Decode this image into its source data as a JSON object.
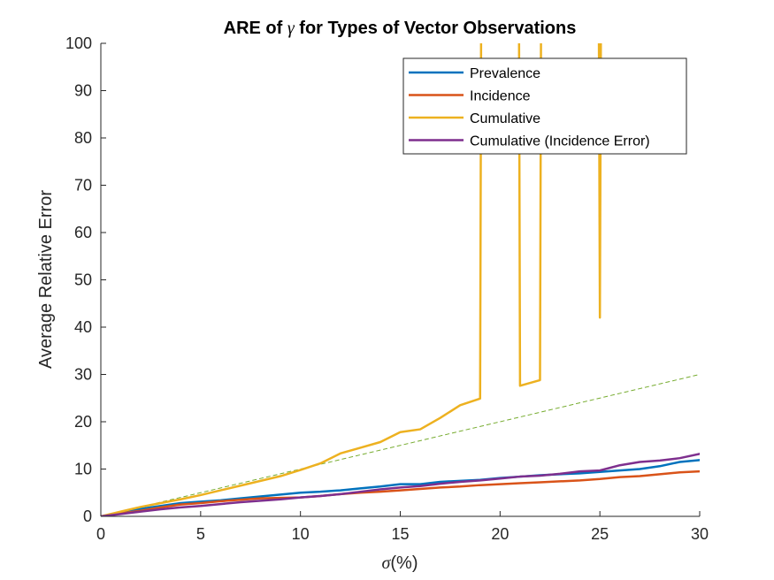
{
  "chart_data": {
    "type": "line",
    "title_prefix": "ARE of ",
    "title_symbol": "γ",
    "title_suffix": " for Types of Vector Observations",
    "xlabel_symbol": "σ",
    "xlabel_suffix": "(%)",
    "ylabel": "Average Relative Error",
    "xlim": [
      0,
      30
    ],
    "ylim": [
      0,
      100
    ],
    "xticks": [
      0,
      5,
      10,
      15,
      20,
      25,
      30
    ],
    "yticks": [
      0,
      10,
      20,
      30,
      40,
      50,
      60,
      70,
      80,
      90,
      100
    ],
    "grid": false,
    "legend_position": "top-right",
    "reference_line": {
      "x": [
        0,
        30
      ],
      "y": [
        0,
        30
      ],
      "color": "#77AC30",
      "style": "dashed"
    },
    "series": [
      {
        "name": "Prevalence",
        "color": "#0072BD",
        "x": [
          0,
          1,
          2,
          3,
          4,
          5,
          6,
          7,
          8,
          9,
          10,
          11,
          12,
          13,
          14,
          15,
          16,
          17,
          18,
          19,
          20,
          21,
          22,
          23,
          24,
          25,
          26,
          27,
          28,
          29,
          30
        ],
        "y": [
          0,
          0.8,
          1.6,
          2.2,
          2.8,
          3.1,
          3.4,
          3.8,
          4.2,
          4.6,
          5.0,
          5.2,
          5.5,
          5.9,
          6.3,
          6.8,
          6.8,
          7.3,
          7.5,
          7.7,
          8.1,
          8.4,
          8.7,
          8.9,
          9.1,
          9.4,
          9.7,
          10.0,
          10.6,
          11.5,
          11.9
        ]
      },
      {
        "name": "Incidence",
        "color": "#D95319",
        "x": [
          0,
          1,
          2,
          3,
          4,
          5,
          6,
          7,
          8,
          9,
          10,
          11,
          12,
          13,
          14,
          15,
          16,
          17,
          18,
          19,
          20,
          21,
          22,
          23,
          24,
          25,
          26,
          27,
          28,
          29,
          30
        ],
        "y": [
          0,
          0.6,
          1.2,
          1.9,
          2.5,
          2.8,
          3.2,
          3.5,
          3.8,
          3.9,
          4.0,
          4.3,
          4.7,
          5.0,
          5.2,
          5.5,
          5.8,
          6.1,
          6.3,
          6.6,
          6.8,
          7.0,
          7.2,
          7.4,
          7.6,
          7.9,
          8.3,
          8.5,
          8.9,
          9.3,
          9.5
        ]
      },
      {
        "name": "Cumulative",
        "color": "#EDB120",
        "x": [
          0,
          1,
          2,
          3,
          4,
          5,
          6,
          7,
          8,
          9,
          10,
          11,
          12,
          13,
          14,
          15,
          16,
          17,
          18,
          19,
          19.05,
          20.95,
          21,
          22,
          22.05,
          24.95,
          25,
          25.05
        ],
        "y": [
          0,
          1.0,
          2.0,
          2.8,
          3.6,
          4.5,
          5.5,
          6.5,
          7.5,
          8.5,
          9.8,
          11.2,
          13.3,
          14.5,
          15.7,
          17.8,
          18.4,
          20.8,
          23.5,
          24.9,
          102,
          102,
          27.6,
          28.8,
          102,
          102,
          42,
          102
        ]
      },
      {
        "name": "Cumulative (Incidence Error)",
        "color": "#7E2F8E",
        "x": [
          0,
          1,
          2,
          3,
          4,
          5,
          6,
          7,
          8,
          9,
          10,
          11,
          12,
          13,
          14,
          15,
          16,
          17,
          18,
          19,
          20,
          21,
          22,
          23,
          24,
          25,
          26,
          27,
          28,
          29,
          30
        ],
        "y": [
          0,
          0.5,
          1.0,
          1.5,
          1.9,
          2.2,
          2.6,
          3.0,
          3.3,
          3.6,
          4.0,
          4.3,
          4.7,
          5.2,
          5.7,
          6.1,
          6.4,
          6.9,
          7.3,
          7.6,
          8.0,
          8.4,
          8.6,
          9.0,
          9.5,
          9.7,
          10.8,
          11.5,
          11.8,
          12.3,
          13.2
        ]
      }
    ]
  }
}
